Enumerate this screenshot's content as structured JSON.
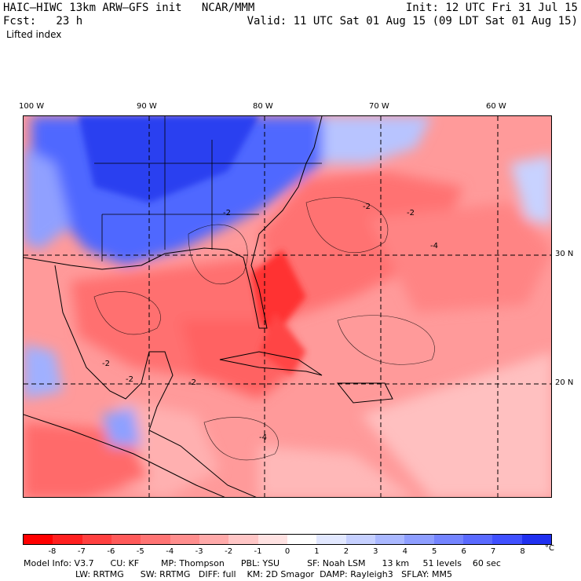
{
  "header": {
    "title_left": "HAIC–HIWC 13km ARW–GFS init   NCAR/MMM",
    "init_right": "Init: 12 UTC Fri 31 Jul 15",
    "fcst_label": "Fcst:   23 h",
    "valid_right": "Valid: 11 UTC Sat 01 Aug 15 (09 LDT Sat 01 Aug 15)",
    "field_name": "Lifted index"
  },
  "map": {
    "lon_labels": [
      "100 W",
      "90 W",
      "80 W",
      "70 W",
      "60 W"
    ],
    "lat_labels": [
      "30 N",
      "20 N"
    ],
    "contour_labels": [
      "-2",
      "-2",
      "-2",
      "-2",
      "-4",
      "-2",
      "-4",
      "-2"
    ],
    "colors": {
      "neg_strong": "#ff2020",
      "neg_mid": "#ff6060",
      "neg_light": "#ffb0b0",
      "pos_light": "#c8d4ff",
      "pos_strong": "#2a3ff0"
    }
  },
  "colorbar": {
    "labels": [
      "-8",
      "-7",
      "-6",
      "-5",
      "-4",
      "-3",
      "-2",
      "-1",
      "0",
      "1",
      "2",
      "3",
      "4",
      "5",
      "6",
      "7",
      "8"
    ],
    "unit": "°C",
    "colors": [
      "#ff0000",
      "#ff2020",
      "#ff4040",
      "#ff5a5a",
      "#ff7474",
      "#ff8e8e",
      "#ffaaaa",
      "#ffc6c6",
      "#ffe2e2",
      "#ffffff",
      "#e2e8ff",
      "#c6d0ff",
      "#aab8ff",
      "#8e9eff",
      "#7484ff",
      "#5a6aff",
      "#4050ff",
      "#2030f0"
    ]
  },
  "model_info": {
    "line1": "Model Info: V3.7      CU: KF        MP: Thompson      PBL: YSU          SF: Noah LSM      13 km     51 levels    60 sec",
    "line2": "LW: RRTMG      SW: RRTMG   DIFF: full    KM: 2D Smagor  DAMP: Rayleigh3   SFLAY: MM5"
  }
}
